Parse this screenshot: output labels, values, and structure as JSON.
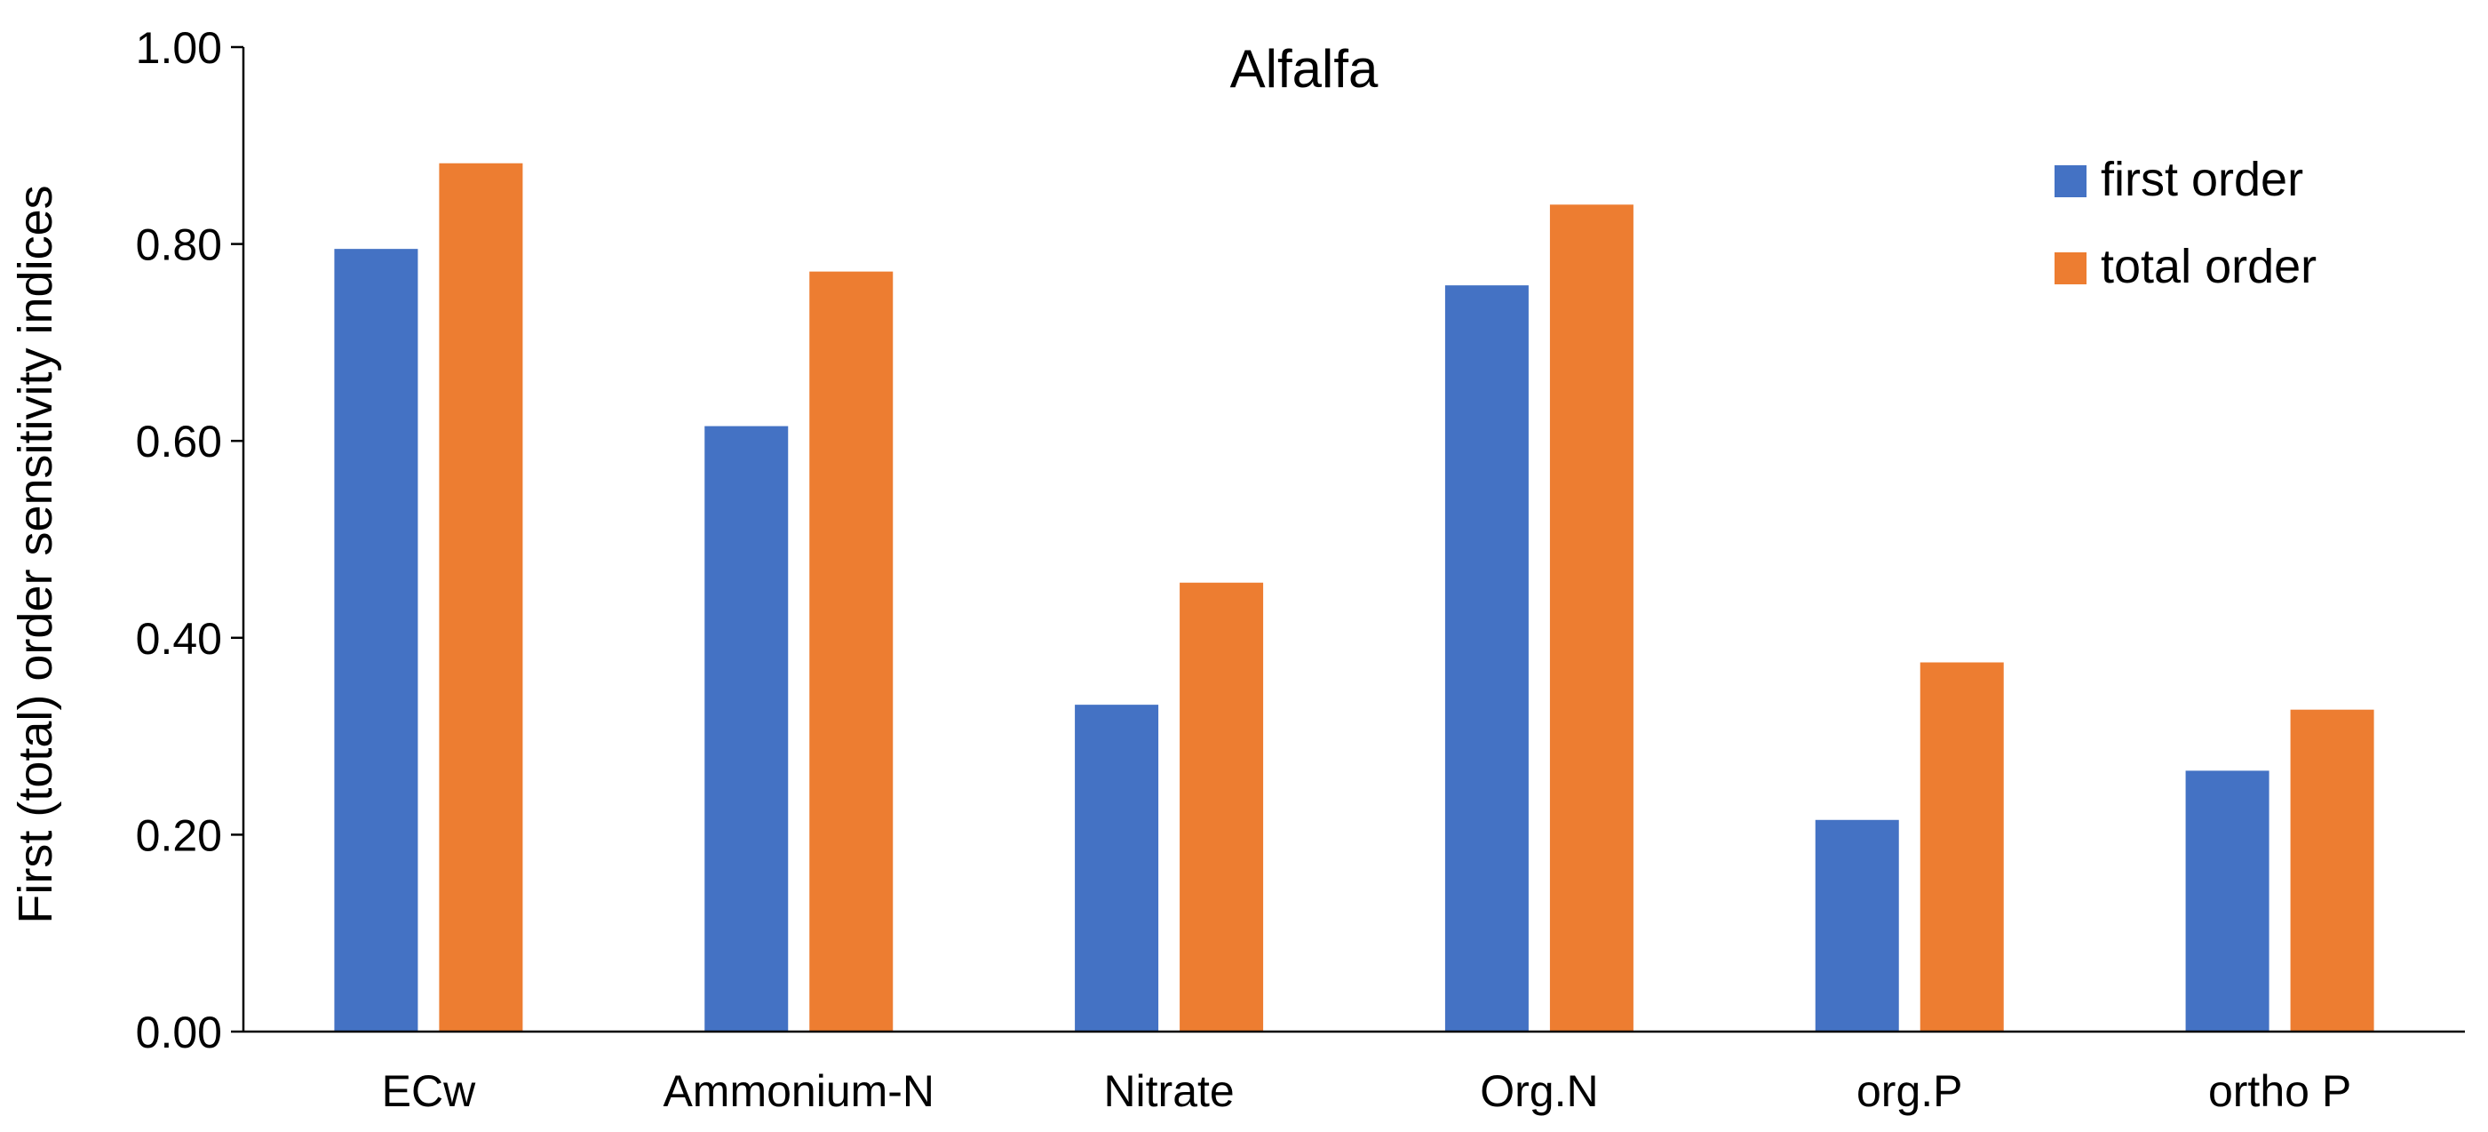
{
  "chart_data": {
    "type": "bar",
    "title": "Alfalfa",
    "xlabel": "",
    "ylabel": "First  (total) order  sensitivity indices",
    "categories": [
      "ECw",
      "Ammonium-N",
      "Nitrate",
      "Org.N",
      "org.P",
      "ortho P"
    ],
    "series": [
      {
        "name": "first order",
        "color": "#4472C4",
        "values": [
          0.795,
          0.615,
          0.332,
          0.758,
          0.215,
          0.265
        ]
      },
      {
        "name": "total order",
        "color": "#ED7D31",
        "values": [
          0.882,
          0.772,
          0.456,
          0.84,
          0.375,
          0.327
        ]
      }
    ],
    "ylim": [
      0,
      1
    ],
    "yticks": [
      "0.00",
      "0.20",
      "0.40",
      "0.60",
      "0.80",
      "1.00"
    ],
    "grid": false,
    "legend_position": "top-right"
  }
}
